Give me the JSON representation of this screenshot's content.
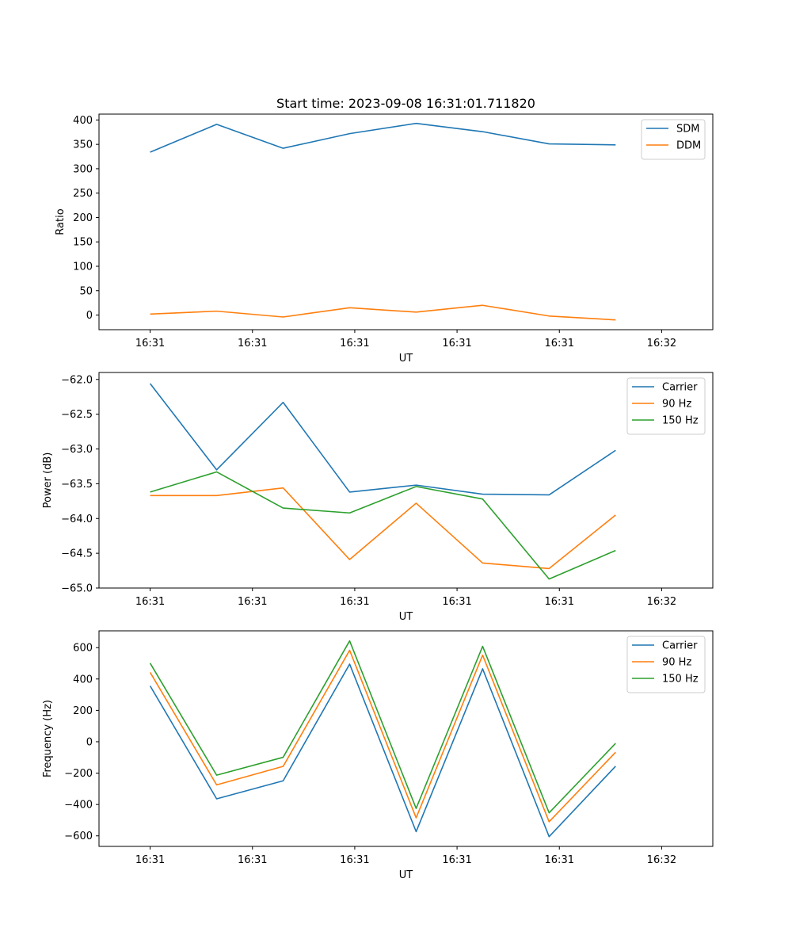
{
  "figure_title": "Start time: 2023-09-08 16:31:01.711820",
  "colors": {
    "blue": "#1f77b4",
    "orange": "#ff7f0e",
    "green": "#2ca02c",
    "axis": "#000000",
    "legend_border": "#cccccc"
  },
  "chart_data": [
    {
      "type": "line",
      "title": "Start time: 2023-09-08 16:31:01.711820",
      "xlabel": "UT",
      "ylabel": "Ratio",
      "legend_position": "top-right",
      "xlim": [
        -0.5,
        5.5
      ],
      "x": [
        0,
        0.65,
        1.3,
        1.95,
        2.6,
        3.25,
        3.9,
        4.55
      ],
      "x_ticks": [
        0,
        1,
        2,
        3,
        4,
        5
      ],
      "x_tick_labels": [
        "16:31",
        "16:31",
        "16:31",
        "16:31",
        "16:31",
        "16:32"
      ],
      "ylim": [
        -30,
        412
      ],
      "y_ticks": [
        0,
        50,
        100,
        150,
        200,
        250,
        300,
        350,
        400
      ],
      "y_tick_labels": [
        "0",
        "50",
        "100",
        "150",
        "200",
        "250",
        "300",
        "350",
        "400"
      ],
      "series": [
        {
          "name": "SDM",
          "color": "#1f77b4",
          "values": [
            334,
            391,
            342,
            372,
            393,
            376,
            351,
            349
          ]
        },
        {
          "name": "DDM",
          "color": "#ff7f0e",
          "values": [
            2,
            8,
            -4,
            15,
            6,
            20,
            -2,
            -10
          ]
        }
      ]
    },
    {
      "type": "line",
      "title": "",
      "xlabel": "UT",
      "ylabel": "Power (dB)",
      "legend_position": "top-right",
      "xlim": [
        -0.5,
        5.5
      ],
      "x": [
        0,
        0.65,
        1.3,
        1.95,
        2.6,
        3.25,
        3.9,
        4.55
      ],
      "x_ticks": [
        0,
        1,
        2,
        3,
        4,
        5
      ],
      "x_tick_labels": [
        "16:31",
        "16:31",
        "16:31",
        "16:31",
        "16:31",
        "16:32"
      ],
      "ylim": [
        -65.0,
        -61.9
      ],
      "y_ticks": [
        -65.0,
        -64.5,
        -64.0,
        -63.5,
        -63.0,
        -62.5,
        -62.0
      ],
      "y_tick_labels": [
        "−65.0",
        "−64.5",
        "−64.0",
        "−63.5",
        "−63.0",
        "−62.5",
        "−62.0"
      ],
      "series": [
        {
          "name": "Carrier",
          "color": "#1f77b4",
          "values": [
            -62.06,
            -63.3,
            -62.33,
            -63.62,
            -63.52,
            -63.65,
            -63.66,
            -63.02
          ]
        },
        {
          "name": "90 Hz",
          "color": "#ff7f0e",
          "values": [
            -63.67,
            -63.67,
            -63.56,
            -64.59,
            -63.78,
            -64.64,
            -64.72,
            -63.95
          ]
        },
        {
          "name": "150 Hz",
          "color": "#2ca02c",
          "values": [
            -63.62,
            -63.33,
            -63.85,
            -63.92,
            -63.54,
            -63.72,
            -64.87,
            -64.46
          ]
        }
      ]
    },
    {
      "type": "line",
      "title": "",
      "xlabel": "UT",
      "ylabel": "Frequency (Hz)",
      "legend_position": "top-right",
      "xlim": [
        -0.5,
        5.5
      ],
      "x": [
        0,
        0.65,
        1.3,
        1.95,
        2.6,
        3.25,
        3.9,
        4.55
      ],
      "x_ticks": [
        0,
        1,
        2,
        3,
        4,
        5
      ],
      "x_tick_labels": [
        "16:31",
        "16:31",
        "16:31",
        "16:31",
        "16:31",
        "16:32"
      ],
      "ylim": [
        -667,
        707
      ],
      "y_ticks": [
        -600,
        -400,
        -200,
        0,
        200,
        400,
        600
      ],
      "y_tick_labels": [
        "−600",
        "−400",
        "−200",
        "0",
        "200",
        "400",
        "600"
      ],
      "series": [
        {
          "name": "Carrier",
          "color": "#1f77b4",
          "values": [
            356,
            -364,
            -249,
            495,
            -573,
            465,
            -605,
            -156
          ]
        },
        {
          "name": "90 Hz",
          "color": "#ff7f0e",
          "values": [
            442,
            -275,
            -157,
            583,
            -485,
            552,
            -510,
            -67
          ]
        },
        {
          "name": "150 Hz",
          "color": "#2ca02c",
          "values": [
            501,
            -213,
            -99,
            643,
            -425,
            608,
            -453,
            -10
          ]
        }
      ]
    }
  ]
}
